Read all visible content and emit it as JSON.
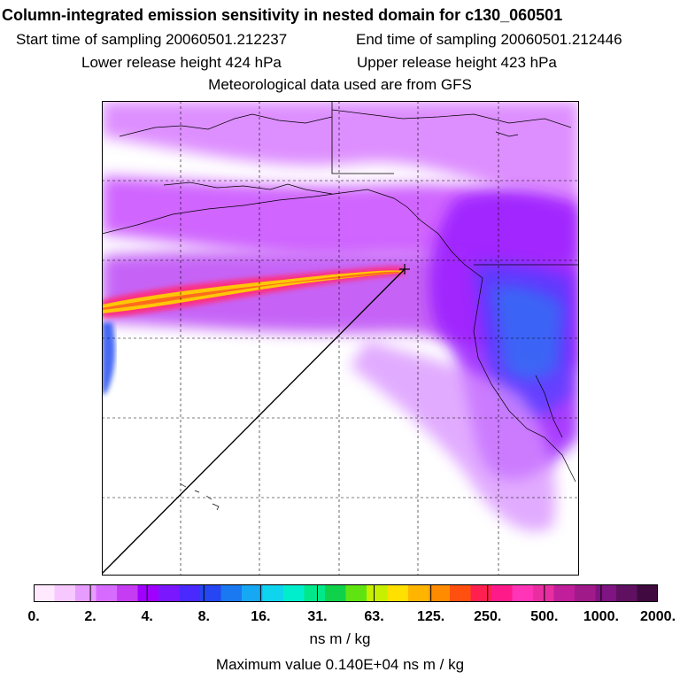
{
  "header": {
    "title": "Column-integrated emission sensitivity in nested domain for c130_060501",
    "start_time": "Start time of sampling 20060501.212237",
    "end_time": "End time of sampling 20060501.212446",
    "lower_release": "Lower release height  424 hPa",
    "upper_release": "Upper release height  423 hPa",
    "met_data": "Meteorological data used are from GFS"
  },
  "colorbar": {
    "tick_labels": [
      "0.",
      "2.",
      "4.",
      "8.",
      "16.",
      "31.",
      "63.",
      "125.",
      "250.",
      "500.",
      "1000.",
      "2000."
    ],
    "units": "ns m / kg",
    "colors": [
      "#ffe9ff",
      "#f7c8ff",
      "#e79cff",
      "#d86bff",
      "#c63cf2",
      "#a000ff",
      "#7a17ff",
      "#4a29ff",
      "#2546f2",
      "#1a79f0",
      "#16a8f2",
      "#0fd4ee",
      "#00eecc",
      "#00e88a",
      "#0fd24a",
      "#5fe412",
      "#c6f000",
      "#ffe000",
      "#ffb400",
      "#ff8c00",
      "#ff5010",
      "#ff2050",
      "#ff1a8a",
      "#ff34b6",
      "#e82ea0",
      "#c01e9a",
      "#a01a8a",
      "#801482",
      "#601060",
      "#400a40"
    ]
  },
  "max_value": "Maximum value  0.140E+04 ns m / kg"
}
